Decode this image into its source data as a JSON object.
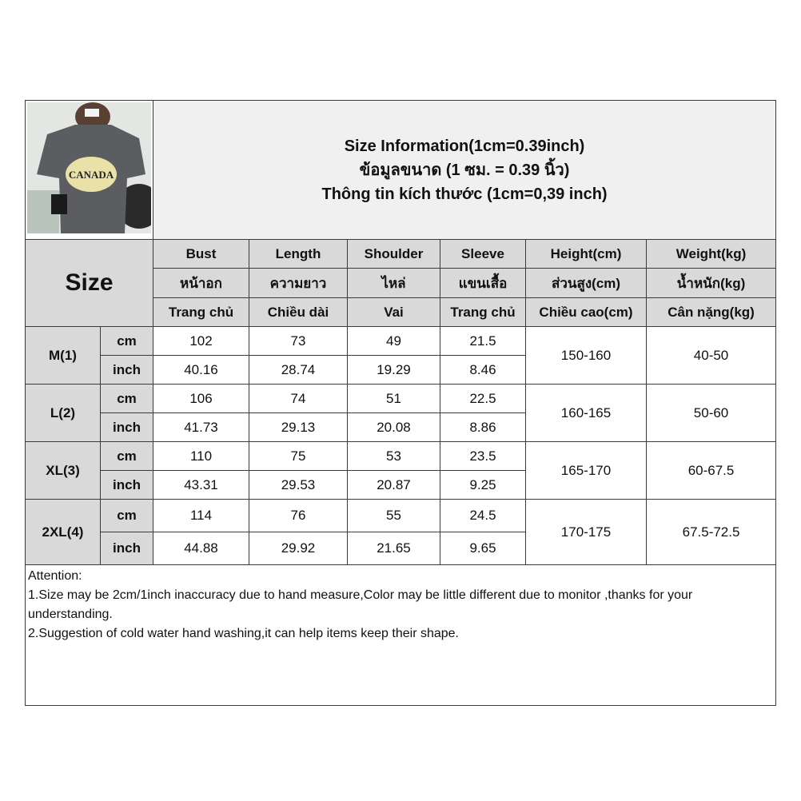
{
  "title_lines": [
    "Size Information(1cm=0.39inch)",
    "ข้อมูลขนาด (1 ซม. = 0.39 นิ้ว)",
    "Thông tin kích thước (1cm=0,39 inch)"
  ],
  "product_image": {
    "description_icon": "tshirt-photo",
    "print_text": "CANADA"
  },
  "size_label": "Size",
  "headers": [
    [
      "Bust",
      "Length",
      "Shoulder",
      "Sleeve",
      "Height(cm)",
      "Weight(kg)"
    ],
    [
      "หน้าอก",
      "ความยาว",
      "ไหล่",
      "แขนเสื้อ",
      "ส่วนสูง(cm)",
      "น้ำหนัก(kg)"
    ],
    [
      "Trang chủ",
      "Chiều dài",
      "Vai",
      "Trang chủ",
      "Chiều cao(cm)",
      "Cân nặng(kg)"
    ]
  ],
  "rows": [
    {
      "size": "M(1)",
      "cm": [
        "102",
        "73",
        "49",
        "21.5"
      ],
      "inch": [
        "40.16",
        "28.74",
        "19.29",
        "8.46"
      ],
      "height": "150-160",
      "weight": "40-50"
    },
    {
      "size": "L(2)",
      "cm": [
        "106",
        "74",
        "51",
        "22.5"
      ],
      "inch": [
        "41.73",
        "29.13",
        "20.08",
        "8.86"
      ],
      "height": "160-165",
      "weight": "50-60"
    },
    {
      "size": "XL(3)",
      "cm": [
        "110",
        "75",
        "53",
        "23.5"
      ],
      "inch": [
        "43.31",
        "29.53",
        "20.87",
        "9.25"
      ],
      "height": "165-170",
      "weight": "60-67.5"
    },
    {
      "size": "2XL(4)",
      "cm": [
        "114",
        "76",
        "55",
        "24.5"
      ],
      "inch": [
        "44.88",
        "29.92",
        "21.65",
        "9.65"
      ],
      "height": "170-175",
      "weight": "67.5-72.5"
    }
  ],
  "unit_labels": {
    "cm": "cm",
    "inch": "inch"
  },
  "notes": [
    "Attention:",
    "1.Size may be 2cm/1inch inaccuracy due to hand measure,Color may be little different due to monitor ,thanks for your understanding.",
    "2.Suggestion of cold water hand washing,it can help items keep their shape."
  ]
}
